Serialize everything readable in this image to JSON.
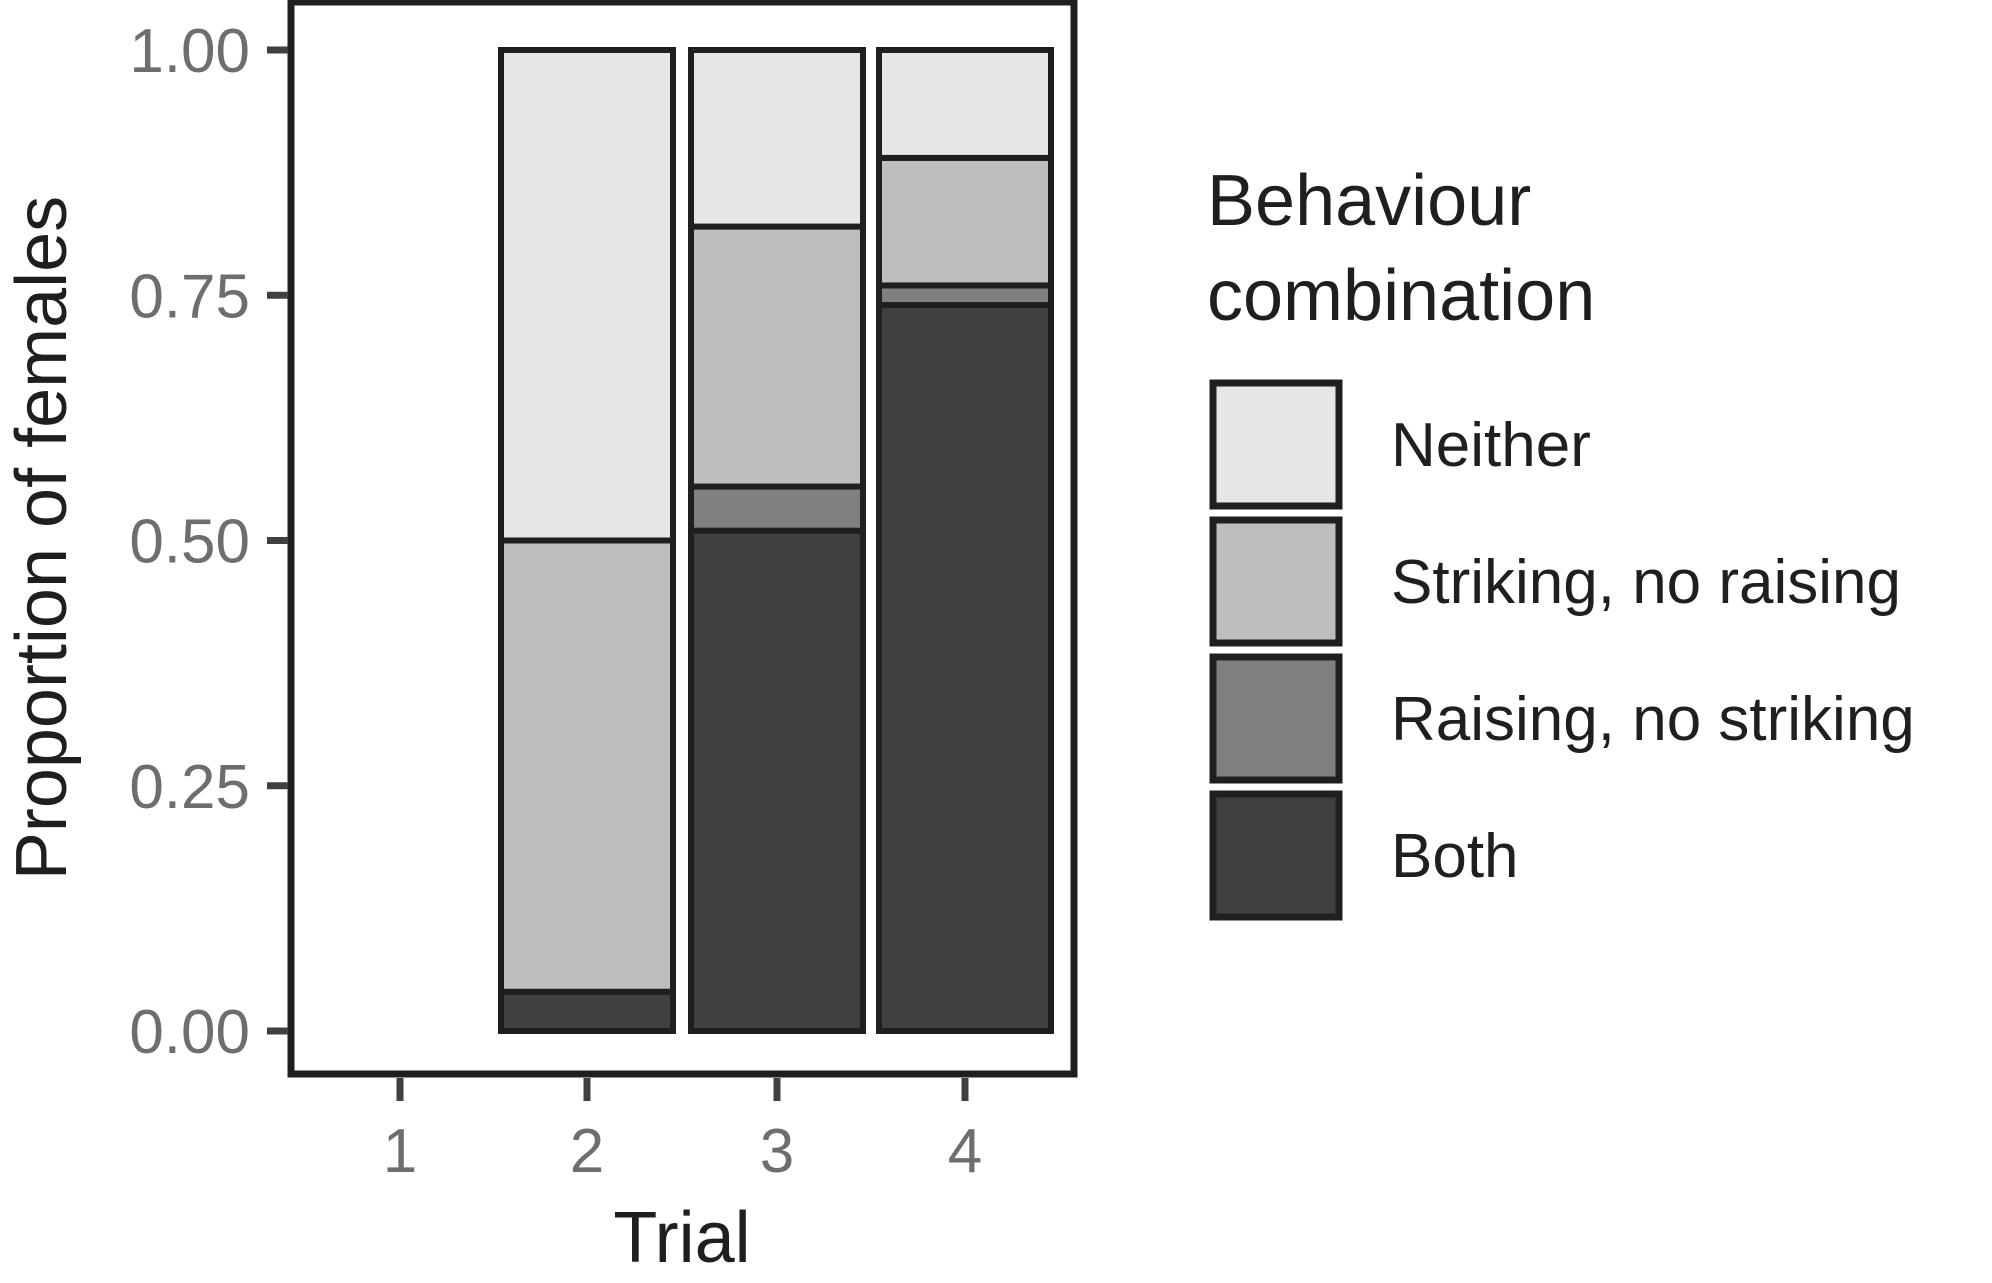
{
  "chart_data": {
    "type": "bar",
    "stacked": true,
    "normalized": true,
    "xlabel": "Trial",
    "ylabel": "Proportion of females",
    "categories": [
      "1",
      "2",
      "3",
      "4"
    ],
    "ylim": [
      0,
      1
    ],
    "yticks": [
      "0.00",
      "0.25",
      "0.50",
      "0.75",
      "1.00"
    ],
    "grid": false,
    "legend": {
      "title_lines": [
        "Behaviour",
        "combination"
      ],
      "position": "right"
    },
    "series": [
      {
        "name": "Both",
        "color": "#404040",
        "values": [
          null,
          0.04,
          0.51,
          0.74
        ]
      },
      {
        "name": "Raising, no striking",
        "color": "#808080",
        "values": [
          null,
          0.0,
          0.045,
          0.02
        ]
      },
      {
        "name": "Striking, no raising",
        "color": "#bebebe",
        "values": [
          null,
          0.46,
          0.265,
          0.13
        ]
      },
      {
        "name": "Neither",
        "color": "#e6e6e6",
        "values": [
          null,
          0.5,
          0.18,
          0.11
        ]
      }
    ],
    "legend_order": [
      "Neither",
      "Striking, no raising",
      "Raising, no striking",
      "Both"
    ]
  }
}
